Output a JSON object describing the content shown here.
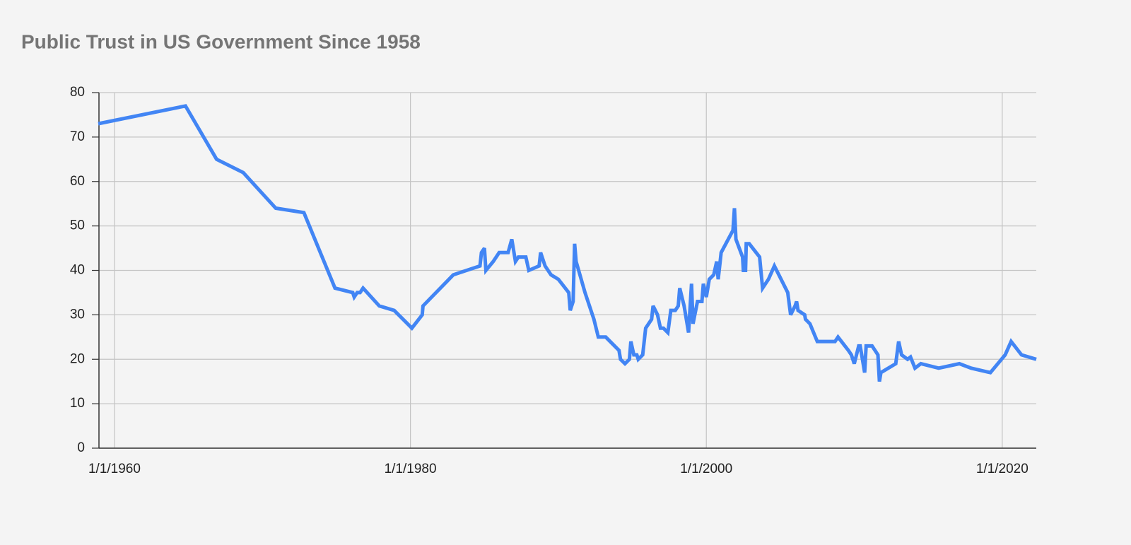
{
  "chart_data": {
    "type": "line",
    "title": "Public Trust in US Government Since 1958",
    "x": [
      1958.9,
      1964.8,
      1966.9,
      1968.7,
      1970.9,
      1972.8,
      1974.9,
      1976.1,
      1976.2,
      1976.4,
      1976.6,
      1976.8,
      1977.9,
      1978.9,
      1980.1,
      1980.8,
      1980.85,
      1982.9,
      1984.7,
      1984.8,
      1985.0,
      1985.1,
      1985.6,
      1986.0,
      1986.6,
      1986.85,
      1987.1,
      1987.3,
      1987.8,
      1988.0,
      1988.7,
      1988.8,
      1989.1,
      1989.5,
      1990.0,
      1990.7,
      1990.8,
      1991.0,
      1991.1,
      1991.2,
      1991.8,
      1992.4,
      1992.7,
      1993.2,
      1994.1,
      1994.2,
      1994.5,
      1994.8,
      1994.9,
      1995.1,
      1995.3,
      1995.4,
      1995.7,
      1995.9,
      1996.3,
      1996.4,
      1996.7,
      1996.9,
      1997.1,
      1997.4,
      1997.6,
      1997.9,
      1998.1,
      1998.2,
      1998.5,
      1998.8,
      1999.0,
      1999.1,
      1999.4,
      1999.7,
      1999.8,
      2000.0,
      2000.2,
      2000.5,
      2000.7,
      2000.8,
      2001.0,
      2001.8,
      2001.9,
      2002.0,
      2002.45,
      2002.5,
      2002.65,
      2002.7,
      2002.9,
      2003.6,
      2003.8,
      2004.2,
      2004.6,
      2004.9,
      2005.5,
      2005.7,
      2006.0,
      2006.1,
      2006.2,
      2006.65,
      2006.7,
      2007.0,
      2007.5,
      2008.7,
      2008.9,
      2009.6,
      2009.8,
      2010.0,
      2010.3,
      2010.4,
      2010.7,
      2010.8,
      2011.2,
      2011.6,
      2011.7,
      2011.8,
      2012.8,
      2013.0,
      2013.2,
      2013.6,
      2013.8,
      2014.1,
      2014.5,
      2015.7,
      2017.1,
      2017.9,
      2019.2,
      2020.2,
      2020.6,
      2021.3,
      2022.3
    ],
    "values": [
      73,
      77,
      65,
      62,
      54,
      53,
      36,
      35,
      34,
      35,
      35,
      36,
      32,
      31,
      27,
      30,
      32,
      39,
      41,
      44,
      45,
      40,
      42,
      44,
      44,
      47,
      42,
      43,
      43,
      40,
      41,
      44,
      41,
      39,
      38,
      35,
      31,
      33,
      46,
      42,
      35,
      29,
      25,
      25,
      22,
      20,
      19,
      20,
      24,
      21,
      21,
      20,
      21,
      27,
      29,
      32,
      30,
      27,
      27,
      26,
      31,
      31,
      32,
      36,
      32,
      26,
      37,
      28,
      33,
      33,
      37,
      34,
      38,
      39,
      42,
      38,
      44,
      49,
      54,
      47,
      43,
      40,
      40,
      46,
      46,
      43,
      36,
      38,
      41,
      39,
      35,
      30,
      32,
      33,
      31,
      30,
      29,
      28,
      24,
      24,
      25,
      22,
      21,
      19,
      23,
      23,
      17,
      23,
      23,
      21,
      15,
      17,
      19,
      24,
      21,
      20,
      20.5,
      18,
      19,
      18,
      19,
      18,
      17,
      21,
      24,
      21,
      20
    ],
    "color": "#4285f4",
    "xlim": [
      1958.95,
      2022.3
    ],
    "xticks": [
      {
        "value": 1960,
        "label": "1/1/1960"
      },
      {
        "value": 1980,
        "label": "1/1/1980"
      },
      {
        "value": 2000,
        "label": "1/1/2000"
      },
      {
        "value": 2020,
        "label": "1/1/2020"
      }
    ],
    "ylim": [
      0,
      80
    ],
    "yticks": [
      0,
      10,
      20,
      30,
      40,
      50,
      60,
      70,
      80
    ],
    "grid": true
  }
}
